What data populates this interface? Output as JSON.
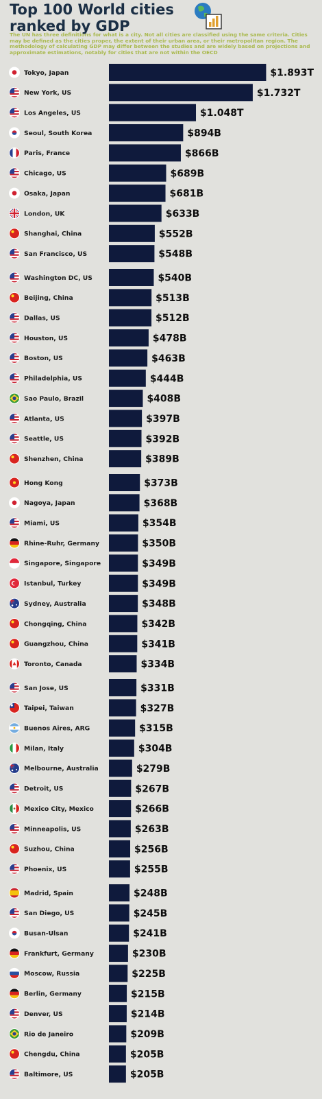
{
  "title_lines": [
    "Top 100 World cities",
    "ranked by GDP"
  ],
  "subtitle": "The UN has three definitions for what is a city. Not all cities are classified using the same criteria. Cities may be defined as the cities proper, the extent of their urban area, or their metropolitan region. The methodology of calculating GDP may differ between the studies and are widely based on projections and approximate estimations, notably for cities that are not within the OECD",
  "chart_data": {
    "type": "bar",
    "orientation": "horizontal",
    "unit": "billion USD",
    "categories": [
      "Tokyo, Japan",
      "New York, US",
      "Los Angeles, US",
      "Seoul, South Korea",
      "Paris, France",
      "Chicago, US",
      "Osaka, Japan",
      "London, UK",
      "Shanghai, China",
      "San Francisco, US",
      "Washington DC, US",
      "Beijing, China",
      "Dallas, US",
      "Houston, US",
      "Boston, US",
      "Philadelphia, US",
      "Sao Paulo, Brazil",
      "Atlanta, US",
      "Seattle, US",
      "Shenzhen, China",
      "Hong Kong",
      "Nagoya, Japan",
      "Miami, US",
      "Rhine-Ruhr, Germany",
      "Singapore, Singapore",
      "Istanbul, Turkey",
      "Sydney, Australia",
      "Chongqing, China",
      "Guangzhou, China",
      "Toronto, Canada",
      "San Jose, US",
      "Taipei, Taiwan",
      "Buenos Aires, ARG",
      "Milan, Italy",
      "Melbourne, Australia",
      "Detroit, US",
      "Mexico City, Mexico",
      "Minneapolis, US",
      "Suzhou, China",
      "Phoenix, US",
      "Madrid, Spain",
      "San Diego, US",
      "Busan-Ulsan",
      "Frankfurt, Germany",
      "Moscow, Russia",
      "Berlin, Germany",
      "Denver, US",
      "Rio de Janeiro",
      "Chengdu, China",
      "Baltimore, US"
    ],
    "values": [
      1893,
      1732,
      1048,
      894,
      866,
      689,
      681,
      633,
      552,
      548,
      540,
      513,
      512,
      478,
      463,
      444,
      408,
      397,
      392,
      389,
      373,
      368,
      354,
      350,
      349,
      349,
      348,
      342,
      341,
      334,
      331,
      327,
      315,
      304,
      279,
      267,
      266,
      263,
      256,
      255,
      248,
      245,
      241,
      230,
      225,
      215,
      214,
      209,
      205,
      205
    ],
    "value_labels": [
      "$1.893T",
      "$1.732T",
      "$1.048T",
      "$894B",
      "$866B",
      "$689B",
      "$681B",
      "$633B",
      "$552B",
      "$548B",
      "$540B",
      "$513B",
      "$512B",
      "$478B",
      "$463B",
      "$444B",
      "$408B",
      "$397B",
      "$392B",
      "$389B",
      "$373B",
      "$368B",
      "$354B",
      "$350B",
      "$349B",
      "$349B",
      "$348B",
      "$342B",
      "$341B",
      "$334B",
      "$331B",
      "$327B",
      "$315B",
      "$304B",
      "$279B",
      "$267B",
      "$266B",
      "$263B",
      "$256B",
      "$255B",
      "$248B",
      "$245B",
      "$241B",
      "$230B",
      "$225B",
      "$215B",
      "$214B",
      "$209B",
      "$205B",
      "$205B"
    ],
    "flags": [
      "jp",
      "us",
      "us",
      "kr",
      "fr",
      "us",
      "jp",
      "gb",
      "cn",
      "us",
      "us",
      "cn",
      "us",
      "us",
      "us",
      "us",
      "br",
      "us",
      "us",
      "cn",
      "hk",
      "jp",
      "us",
      "de",
      "sg",
      "tr",
      "au",
      "cn",
      "cn",
      "ca",
      "us",
      "tw",
      "ar",
      "it",
      "au",
      "us",
      "mx",
      "us",
      "cn",
      "us",
      "es",
      "us",
      "kr",
      "de",
      "ru",
      "de",
      "us",
      "br",
      "cn",
      "us"
    ],
    "bar_color": "#0f1a3c",
    "background": "#e1e1dd",
    "title_color": "#1b2f45",
    "subtitle_color": "#a9b94e"
  }
}
